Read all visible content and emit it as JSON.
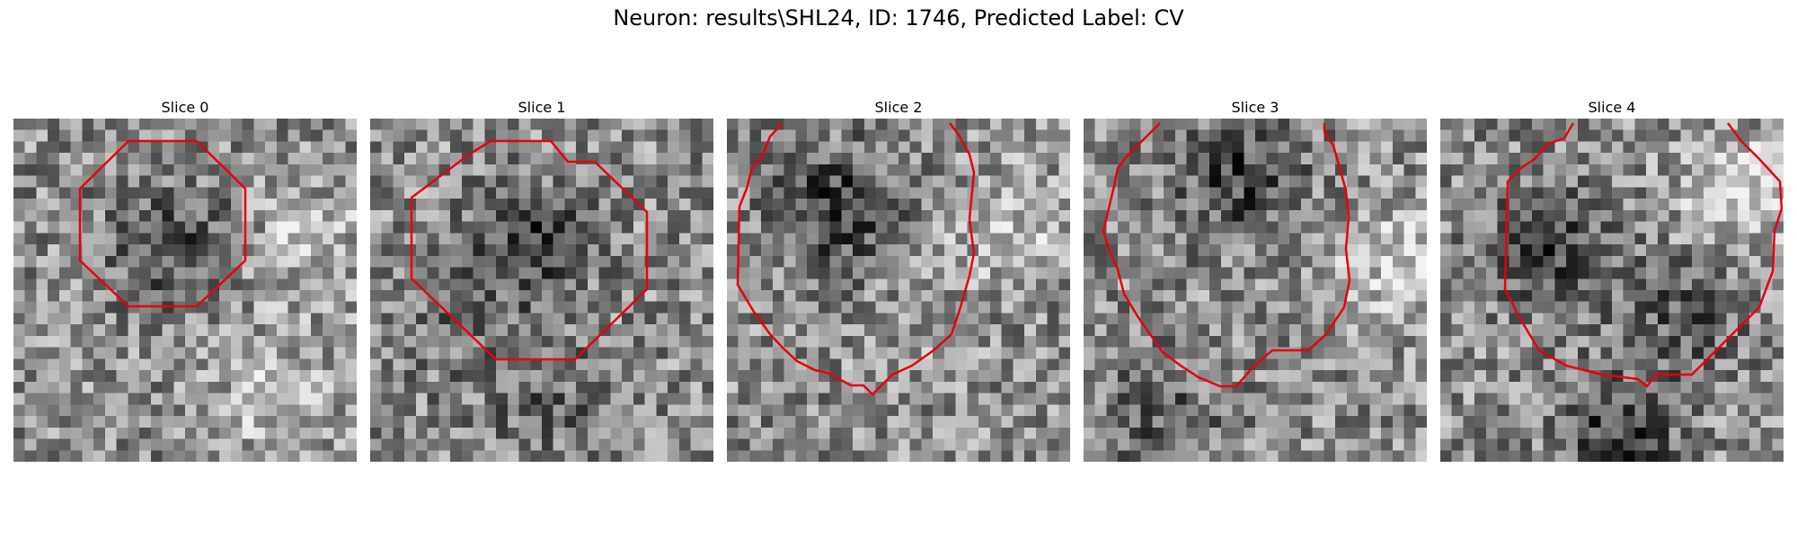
{
  "figure": {
    "title": "Neuron: results\\SHL24, ID: 1746, Predicted Label: CV"
  },
  "slices": [
    {
      "title": "Slice 0",
      "seed": 11,
      "blobs": [
        [
          0.45,
          0.35,
          -0.25
        ],
        [
          0.75,
          0.8,
          0.22
        ],
        [
          0.85,
          0.35,
          0.2
        ]
      ]
    },
    {
      "title": "Slice 1",
      "seed": 23,
      "blobs": [
        [
          0.45,
          0.35,
          -0.3
        ],
        [
          0.5,
          0.8,
          -0.15
        ],
        [
          0.2,
          0.6,
          -0.1
        ]
      ]
    },
    {
      "title": "Slice 2",
      "seed": 37,
      "blobs": [
        [
          0.3,
          0.25,
          -0.35
        ],
        [
          0.8,
          0.3,
          0.2
        ],
        [
          0.5,
          0.6,
          0.05
        ]
      ]
    },
    {
      "title": "Slice 3",
      "seed": 51,
      "blobs": [
        [
          0.45,
          0.15,
          -0.3
        ],
        [
          0.9,
          0.4,
          0.25
        ],
        [
          0.2,
          0.85,
          -0.2
        ]
      ]
    },
    {
      "title": "Slice 4",
      "seed": 67,
      "blobs": [
        [
          0.3,
          0.35,
          -0.3
        ],
        [
          0.85,
          0.2,
          0.3
        ],
        [
          0.5,
          0.9,
          -0.3
        ],
        [
          0.7,
          0.55,
          -0.2
        ]
      ]
    }
  ],
  "contour_color": "#e8000b"
}
